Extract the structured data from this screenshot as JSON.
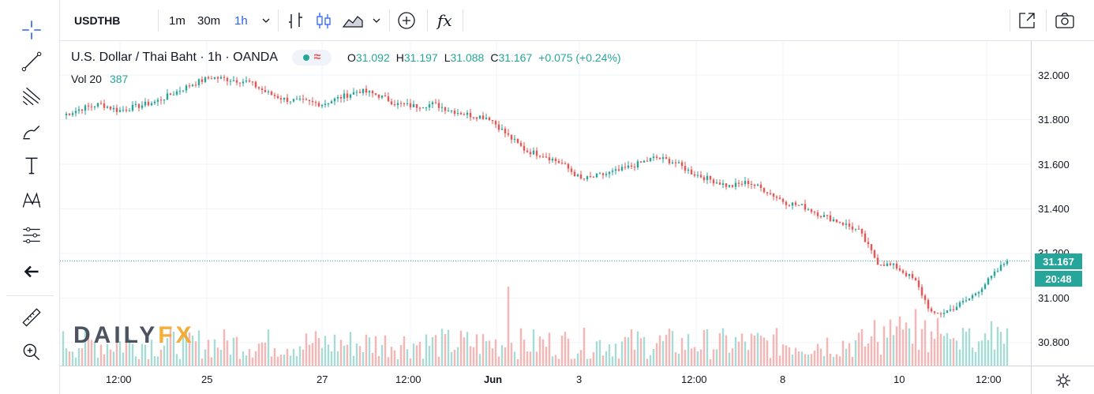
{
  "toolbar": {
    "symbol": "USDTHB",
    "intervals": [
      "1m",
      "30m",
      "1h"
    ],
    "active_interval": "1h",
    "icons": [
      "bar-style-icon",
      "candles-icon",
      "area-icon",
      "chevron-down-icon",
      "compare-plus-icon",
      "indicators-fx-icon",
      "fullscreen-icon",
      "snapshot-camera-icon"
    ],
    "fx_label": "fx"
  },
  "left_tools": [
    "crosshair-icon",
    "trend-line-icon",
    "fib-tools-icon",
    "brush-icon",
    "text-icon",
    "pattern-icon",
    "prediction-icon",
    "back-arrow-icon",
    "ruler-icon",
    "zoom-in-icon"
  ],
  "legend": {
    "title": "U.S. Dollar / Thai Baht · 1h · OANDA",
    "open_label": "O",
    "open": "31.092",
    "high_label": "H",
    "high": "31.197",
    "low_label": "L",
    "low": "31.088",
    "close_label": "C",
    "close": "31.167",
    "change": "+0.075 (+0.24%)",
    "vol_label": "Vol 20",
    "vol_value": "387"
  },
  "watermark": {
    "brand": "DAILY",
    "brand_accent": "FX"
  },
  "price_axis": {
    "ticks": [
      "32.000",
      "31.800",
      "31.600",
      "31.400",
      "31.200",
      "31.000",
      "30.800"
    ],
    "last_price": "31.167",
    "countdown": "20:48"
  },
  "time_axis": {
    "ticks": [
      "12:00",
      "25",
      "27",
      "12:00",
      "Jun",
      "3",
      "12:00",
      "8",
      "10",
      "12:00"
    ]
  },
  "colors": {
    "up": "#26a69a",
    "down": "#ef5350",
    "accent": "#2962ff",
    "grid": "#f0f3fa"
  },
  "chart_data": {
    "type": "candlestick",
    "symbol": "USDTHB",
    "interval": "1h",
    "ylim": [
      30.7,
      32.05
    ],
    "x": [
      "12:00",
      "25",
      "27",
      "12:00",
      "Jun",
      "3",
      "12:00",
      "8",
      "10",
      "12:00"
    ],
    "close_path": [
      31.82,
      31.85,
      31.87,
      31.84,
      31.86,
      31.88,
      31.92,
      31.96,
      31.99,
      31.98,
      31.97,
      31.92,
      31.89,
      31.88,
      31.87,
      31.9,
      31.93,
      31.91,
      31.87,
      31.86,
      31.87,
      31.84,
      31.82,
      31.81,
      31.73,
      31.66,
      31.64,
      31.6,
      31.53,
      31.55,
      31.57,
      31.6,
      31.63,
      31.61,
      31.56,
      31.53,
      31.5,
      31.52,
      31.48,
      31.43,
      31.41,
      31.37,
      31.34,
      31.3,
      31.16,
      31.14,
      31.08,
      30.92,
      30.95,
      31.0,
      31.08,
      31.17
    ],
    "last": 31.167,
    "volume_label": "Vol 20",
    "last_volume": 387
  }
}
